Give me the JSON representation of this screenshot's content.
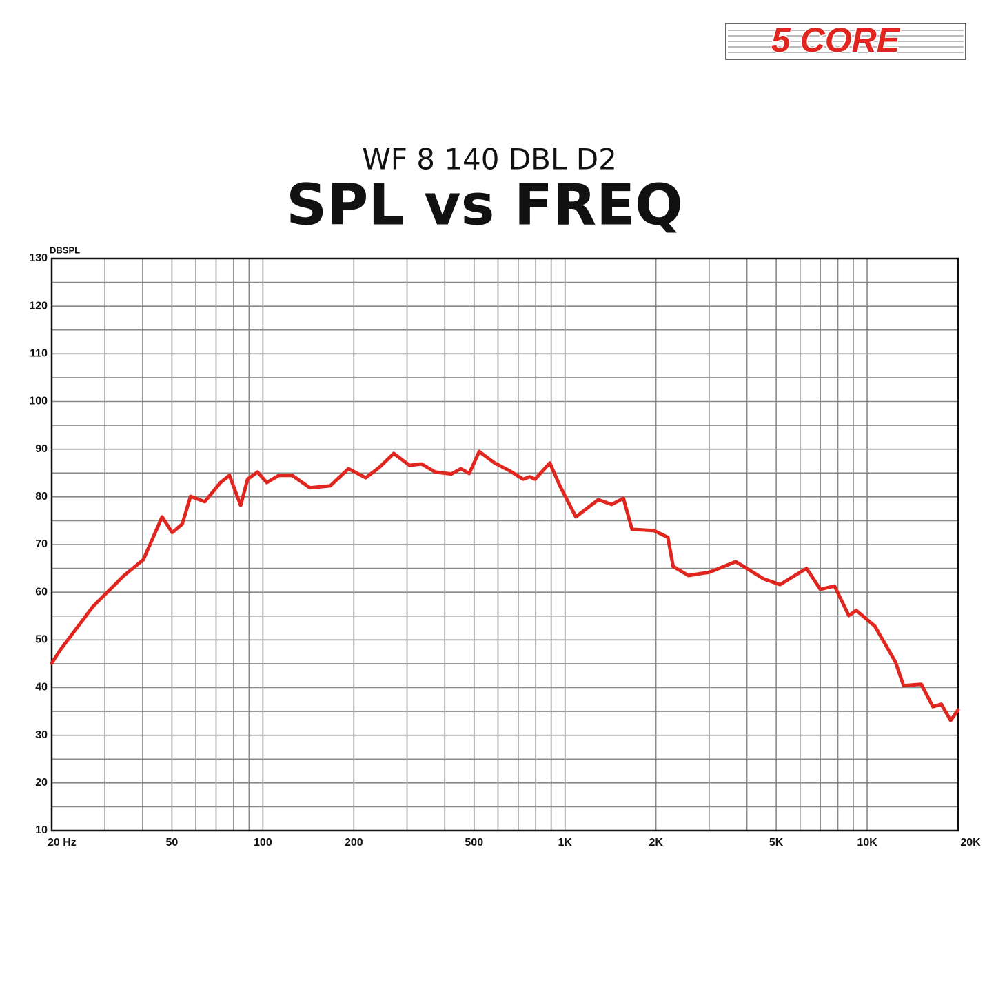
{
  "logo": "5 CORE",
  "chart_data": {
    "type": "line",
    "subtitle": "WF 8 140 DBL D2",
    "title": "SPL vs FREQ",
    "y_label": "DBSPL",
    "x_scale": "log",
    "grid": true,
    "xlim": [
      20,
      20000
    ],
    "ylim": [
      10,
      130
    ],
    "xticks": [
      {
        "value": 20,
        "label": "20 Hz"
      },
      50,
      100,
      200,
      500,
      {
        "value": 1000,
        "label": "1K"
      },
      {
        "value": 2000,
        "label": "2K"
      },
      {
        "value": 5000,
        "label": "5K"
      },
      {
        "value": 10000,
        "label": "10K"
      },
      {
        "value": 20000,
        "label": "20K"
      }
    ],
    "yticks": [
      10,
      20,
      30,
      40,
      50,
      60,
      70,
      80,
      90,
      100,
      110,
      120,
      130
    ],
    "minor_xticks": [
      30,
      40,
      60,
      70,
      80,
      90,
      300,
      400,
      600,
      700,
      800,
      900,
      3000,
      4000,
      6000,
      7000,
      8000,
      9000
    ],
    "minor_yticks": [
      15,
      25,
      35,
      45,
      55,
      65,
      75,
      85,
      95,
      105,
      115,
      125
    ],
    "series": [
      {
        "color": "#e0261f",
        "x": [
          20,
          21.4,
          27.4,
          34.7,
          40.2,
          46.4,
          50.1,
          54.1,
          57.6,
          64.2,
          72.4,
          77.5,
          84.4,
          89,
          96,
          103,
          113,
          125,
          143,
          167,
          192,
          219,
          243,
          271,
          306,
          335,
          372,
          421,
          452,
          482,
          520,
          585,
          654,
          727,
          765,
          796,
          891,
          962,
          1086,
          1288,
          1427,
          1560,
          1666,
          1972,
          2190,
          2280,
          2560,
          3010,
          3670,
          3950,
          4540,
          5150,
          6300,
          7000,
          7800,
          8700,
          9200,
          10600,
          12400,
          13200,
          15100,
          16500,
          17600,
          18900,
          20000
        ],
        "values": [
          45.1,
          48,
          57,
          63.5,
          66.8,
          75.8,
          72.5,
          74.3,
          80.1,
          79,
          83,
          84.5,
          78.2,
          83.7,
          85.2,
          83,
          84.5,
          84.5,
          81.9,
          82.3,
          85.9,
          84,
          86.2,
          89.1,
          86.6,
          86.9,
          85.2,
          84.8,
          85.9,
          84.9,
          89.5,
          87.1,
          85.5,
          83.7,
          84.2,
          83.7,
          87.1,
          82.3,
          75.8,
          79.4,
          78.4,
          79.7,
          73.2,
          72.9,
          71.5,
          65.4,
          63.5,
          64.2,
          66.4,
          65.2,
          62.8,
          61.6,
          65,
          60.6,
          61.3,
          55.1,
          56.2,
          52.9,
          45.4,
          40.4,
          40.7,
          36,
          36.5,
          33.1,
          35.3
        ]
      }
    ]
  }
}
